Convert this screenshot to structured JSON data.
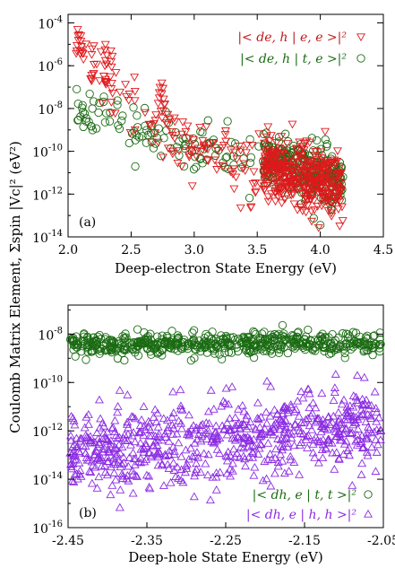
{
  "figure": {
    "ylabel": "Coulomb Matrix Element, Σspin |Vc|² (eV²)"
  },
  "chart_data": [
    {
      "type": "scatter",
      "panel_label": "(a)",
      "xlabel": "Deep-electron State Energy (eV)",
      "xlim": [
        2.0,
        4.5
      ],
      "ylim_log10": [
        -14,
        -3.6
      ],
      "y_scale": "log",
      "x_ticks": [
        "2.0",
        "2.5",
        "3.0",
        "3.5",
        "4.0",
        "4.5"
      ],
      "x_tick_values": [
        2.0,
        2.5,
        3.0,
        3.5,
        4.0,
        4.5
      ],
      "y_ticks": [
        {
          "base": "10",
          "exp": "-4",
          "value": 0.0001
        },
        {
          "base": "10",
          "exp": "-6",
          "value": 1e-06
        },
        {
          "base": "10",
          "exp": "-8",
          "value": 1e-08
        },
        {
          "base": "10",
          "exp": "-10",
          "value": 1e-10
        },
        {
          "base": "10",
          "exp": "-12",
          "value": 1e-12
        },
        {
          "base": "10",
          "exp": "-14",
          "value": 1e-14
        }
      ],
      "legend_position": "top-right",
      "series": [
        {
          "name": "|< de, h | e, e >|²",
          "marker": "triangle-down",
          "color": "#e0191c",
          "x_range": [
            2.05,
            4.18
          ],
          "log10_y_trend": [
            [
              2.1,
              -5.0
            ],
            [
              2.5,
              -8.0
            ],
            [
              3.0,
              -9.8
            ],
            [
              3.5,
              -10.6
            ],
            [
              4.0,
              -11.4
            ],
            [
              4.15,
              -11.6
            ]
          ],
          "log10_y_spread": 1.4,
          "highlights": [
            [
              2.08,
              -4.3
            ],
            [
              2.1,
              -4.6
            ],
            [
              2.3,
              -5.0
            ],
            [
              2.35,
              -5.3
            ],
            [
              2.75,
              -6.8
            ],
            [
              2.72,
              -7.0
            ]
          ]
        },
        {
          "name": "|< de, h | t, e >|²",
          "marker": "circle",
          "color": "#1a6b12",
          "x_range": [
            2.05,
            4.18
          ],
          "log10_y_trend": [
            [
              2.1,
              -8.0
            ],
            [
              2.5,
              -8.8
            ],
            [
              3.0,
              -9.6
            ],
            [
              3.5,
              -10.4
            ],
            [
              4.0,
              -11.0
            ],
            [
              4.15,
              -11.3
            ]
          ],
          "log10_y_spread": 1.1
        }
      ]
    },
    {
      "type": "scatter",
      "panel_label": "(b)",
      "xlabel": "Deep-hole State Energy (eV)",
      "xlim": [
        -2.45,
        -2.05
      ],
      "ylim_log10": [
        -16,
        -6.8
      ],
      "y_scale": "log",
      "x_ticks": [
        "-2.45",
        "-2.35",
        "-2.25",
        "-2.15",
        "-2.05"
      ],
      "x_tick_values": [
        -2.45,
        -2.35,
        -2.25,
        -2.15,
        -2.05
      ],
      "y_ticks": [
        {
          "base": "10",
          "exp": "-8",
          "value": 1e-08
        },
        {
          "base": "10",
          "exp": "-10",
          "value": 1e-10
        },
        {
          "base": "10",
          "exp": "-12",
          "value": 1e-12
        },
        {
          "base": "10",
          "exp": "-14",
          "value": 1e-14
        },
        {
          "base": "10",
          "exp": "-16",
          "value": 1e-16
        }
      ],
      "legend_position": "bottom-right",
      "series": [
        {
          "name": "|< dh, e | t, t >|²",
          "marker": "circle",
          "color": "#1a6b12",
          "x_range": [
            -2.45,
            -2.05
          ],
          "log10_y_center": -8.4,
          "log10_y_spread": 0.45
        },
        {
          "name": "|< dh, e | h, h >|²",
          "marker": "triangle-up",
          "color": "#8a2be2",
          "x_range": [
            -2.45,
            -2.05
          ],
          "log10_y_center": -12.3,
          "log10_y_spread": 1.5
        }
      ]
    }
  ]
}
